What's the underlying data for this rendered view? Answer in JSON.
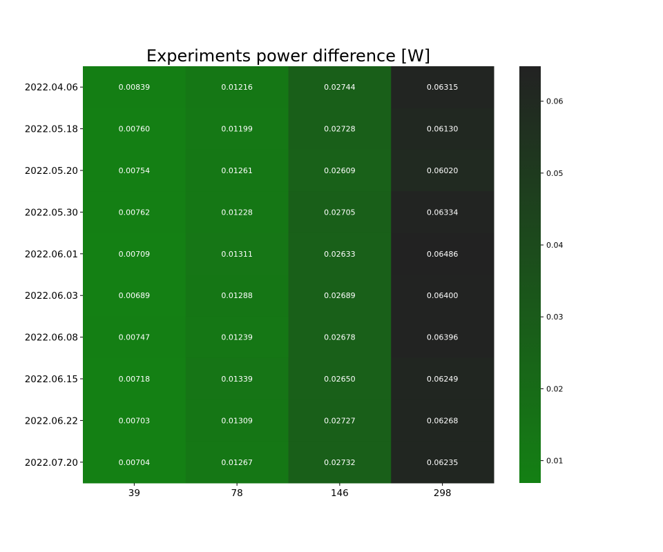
{
  "chart_data": {
    "type": "heatmap",
    "title": "Experiments power difference [W]",
    "xlabel": "",
    "ylabel": "",
    "x_categories": [
      "39",
      "78",
      "146",
      "298"
    ],
    "y_categories": [
      "2022.04.06",
      "2022.05.18",
      "2022.05.20",
      "2022.05.30",
      "2022.06.01",
      "2022.06.03",
      "2022.06.08",
      "2022.06.15",
      "2022.06.22",
      "2022.07.20"
    ],
    "values": [
      [
        0.00839,
        0.01216,
        0.02744,
        0.06315
      ],
      [
        0.0076,
        0.01199,
        0.02728,
        0.0613
      ],
      [
        0.00754,
        0.01261,
        0.02609,
        0.0602
      ],
      [
        0.00762,
        0.01228,
        0.02705,
        0.06334
      ],
      [
        0.00709,
        0.01311,
        0.02633,
        0.06486
      ],
      [
        0.00689,
        0.01288,
        0.02689,
        0.064
      ],
      [
        0.00747,
        0.01239,
        0.02678,
        0.06396
      ],
      [
        0.00718,
        0.01339,
        0.0265,
        0.06249
      ],
      [
        0.00703,
        0.01309,
        0.02727,
        0.06268
      ],
      [
        0.00704,
        0.01267,
        0.02732,
        0.06235
      ]
    ],
    "value_labels": [
      [
        "0.00839",
        "0.01216",
        "0.02744",
        "0.06315"
      ],
      [
        "0.00760",
        "0.01199",
        "0.02728",
        "0.06130"
      ],
      [
        "0.00754",
        "0.01261",
        "0.02609",
        "0.06020"
      ],
      [
        "0.00762",
        "0.01228",
        "0.02705",
        "0.06334"
      ],
      [
        "0.00709",
        "0.01311",
        "0.02633",
        "0.06486"
      ],
      [
        "0.00689",
        "0.01288",
        "0.02689",
        "0.06400"
      ],
      [
        "0.00747",
        "0.01239",
        "0.02678",
        "0.06396"
      ],
      [
        "0.00718",
        "0.01339",
        "0.02650",
        "0.06249"
      ],
      [
        "0.00703",
        "0.01309",
        "0.02727",
        "0.06268"
      ],
      [
        "0.00704",
        "0.01267",
        "0.02732",
        "0.06235"
      ]
    ],
    "colorbar": {
      "range": [
        0.00689,
        0.06486
      ],
      "ticks": [
        0.01,
        0.02,
        0.03,
        0.04,
        0.05,
        0.06
      ],
      "tick_labels": [
        "0.01",
        "0.02",
        "0.03",
        "0.04",
        "0.05",
        "0.06"
      ],
      "color_low": "#148014",
      "color_high": "#222222",
      "placement": "right"
    },
    "grid": false
  }
}
